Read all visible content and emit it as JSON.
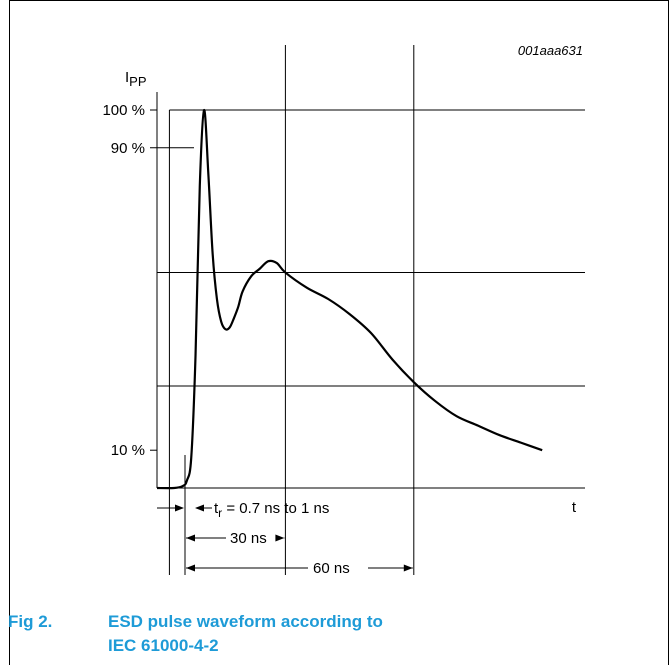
{
  "figure_code": "001aaa631",
  "caption": {
    "number": "Fig 2.",
    "line1": "ESD pulse waveform according to",
    "line2": "IEC 61000-4-2"
  },
  "annotations": {
    "rise_time": "= 0.7 ns to 1 ns",
    "rise_time_symbol": "t",
    "rise_time_subscript": "r",
    "span_30": "30 ns",
    "span_60": "60 ns"
  },
  "colors": {
    "caption": "#1e9bd7",
    "curve": "#000000"
  },
  "chart_data": {
    "type": "line",
    "title": "",
    "xlabel": "t",
    "ylabel_main": "I",
    "ylabel_sub": "PP",
    "xlim": [
      0,
      100
    ],
    "ylim": [
      0,
      100
    ],
    "grid": true,
    "y_ticks": [
      {
        "value": 100,
        "label": "100 %"
      },
      {
        "value": 90,
        "label": "90 %"
      },
      {
        "value": 10,
        "label": "10 %"
      }
    ],
    "x_gridlines": [
      2.9,
      30,
      60
    ],
    "y_gridlines": [
      100,
      57,
      27
    ],
    "series": [
      {
        "x": [
          0,
          4,
          6,
          7,
          8,
          9,
          10,
          11,
          12,
          13,
          14,
          15,
          16,
          17,
          18,
          19,
          20,
          22,
          24,
          26,
          28,
          30,
          35,
          40,
          45,
          50,
          55,
          60,
          65,
          70,
          75,
          80,
          85,
          90
        ],
        "y": [
          0,
          0,
          0.5,
          2,
          8,
          35,
          80,
          100,
          83,
          62,
          50,
          44,
          42,
          42.5,
          45,
          48,
          52,
          56,
          58,
          60,
          59.5,
          57,
          53,
          50,
          46,
          41,
          34,
          28,
          23,
          19,
          16.5,
          14,
          12,
          10
        ]
      }
    ]
  }
}
